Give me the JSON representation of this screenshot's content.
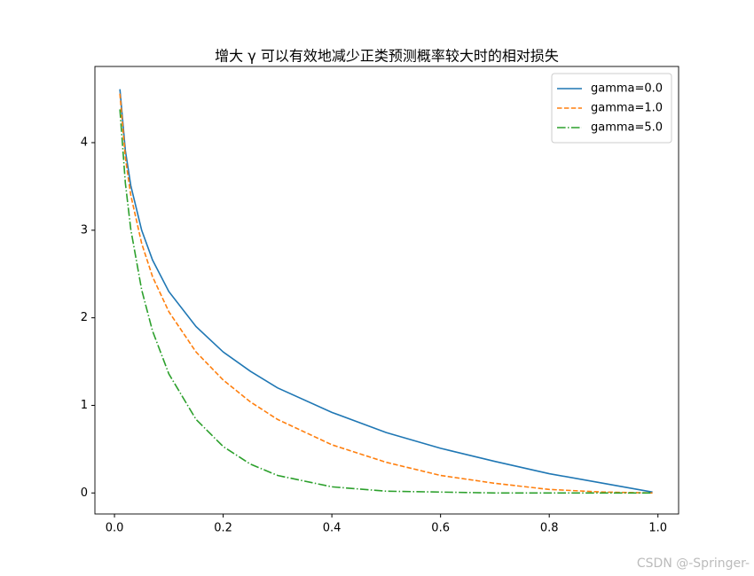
{
  "chart_data": {
    "type": "line",
    "title": "增大 γ 可以有效地减少正类预测概率较大时的相对损失",
    "x": [
      0.01,
      0.02,
      0.03,
      0.05,
      0.07,
      0.1,
      0.15,
      0.2,
      0.25,
      0.3,
      0.4,
      0.5,
      0.6,
      0.7,
      0.8,
      0.9,
      0.99
    ],
    "series": [
      {
        "name": "gamma=0.0",
        "color": "#1f77b4",
        "linestyle": "solid",
        "values": [
          4.61,
          3.91,
          3.51,
          3.0,
          2.66,
          2.3,
          1.9,
          1.61,
          1.39,
          1.2,
          0.92,
          0.69,
          0.51,
          0.36,
          0.22,
          0.11,
          0.01
        ]
      },
      {
        "name": "gamma=1.0",
        "color": "#ff7f0e",
        "linestyle": "dashed",
        "values": [
          4.56,
          3.83,
          3.4,
          2.85,
          2.47,
          2.07,
          1.61,
          1.29,
          1.04,
          0.84,
          0.55,
          0.35,
          0.2,
          0.11,
          0.04,
          0.01,
          0.0
        ]
      },
      {
        "name": "gamma=5.0",
        "color": "#2ca02c",
        "linestyle": "dashdot",
        "values": [
          4.38,
          3.54,
          3.01,
          2.32,
          1.85,
          1.36,
          0.84,
          0.53,
          0.33,
          0.2,
          0.07,
          0.02,
          0.01,
          0.0,
          0.0,
          0.0,
          0.0
        ]
      }
    ],
    "xlim": [
      -0.036,
      1.038
    ],
    "ylim": [
      -0.24,
      4.87
    ],
    "xticks": [
      {
        "value": 0,
        "label": "0.0"
      },
      0.2,
      0.4,
      0.6,
      0.8,
      {
        "value": 1,
        "label": "1.0"
      }
    ],
    "yticks": [
      0,
      1,
      2,
      3,
      4
    ],
    "grid": false,
    "legend": "upper right"
  },
  "watermark": "CSDN @-Springer-"
}
